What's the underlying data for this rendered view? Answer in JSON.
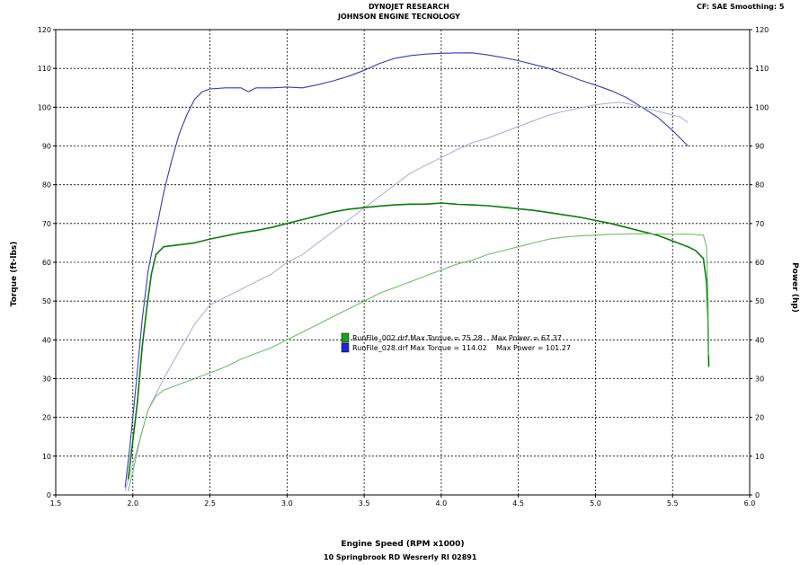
{
  "header": {
    "line1": "DYNOJET RESEARCH",
    "line2": "JOHNSON ENGINE TECNOLOGY",
    "right": "CF: SAE  Smoothing: 5"
  },
  "footer": {
    "address": "10 Springbrook RD Wesrerly RI 02891"
  },
  "chart_data": {
    "type": "line",
    "xlabel": "Engine Speed (RPM x1000)",
    "ylabel_left": "Torque (ft-lbs)",
    "ylabel_right": "Power (hp)",
    "xlim": [
      1.5,
      6.0
    ],
    "ylim": [
      0,
      120
    ],
    "x_ticks": [
      "1.5",
      "2.0",
      "2.5",
      "3.0",
      "3.5",
      "4.0",
      "4.5",
      "5.0",
      "5.5",
      "6.0"
    ],
    "y_ticks": [
      "0",
      "10",
      "20",
      "30",
      "40",
      "50",
      "60",
      "70",
      "80",
      "90",
      "100",
      "110",
      "120"
    ],
    "grid": true,
    "legend": [
      {
        "label": "RunFile_002.drf Max Torque = 75.28    Max Power = 67.37",
        "color": "#1e9e1e"
      },
      {
        "label": "RunFile_028.drf Max Torque = 114.02    Max Power = 101.27",
        "color": "#2222dd"
      }
    ],
    "series": [
      {
        "name": "RunFile_028.drf Torque",
        "color": "#3a3ab8",
        "width": 1.1,
        "points": [
          [
            1.95,
            2
          ],
          [
            1.98,
            12
          ],
          [
            2.02,
            28
          ],
          [
            2.06,
            45
          ],
          [
            2.1,
            58
          ],
          [
            2.15,
            68
          ],
          [
            2.2,
            78
          ],
          [
            2.25,
            86
          ],
          [
            2.3,
            93
          ],
          [
            2.35,
            98
          ],
          [
            2.4,
            102
          ],
          [
            2.45,
            104
          ],
          [
            2.5,
            104.7
          ],
          [
            2.6,
            105
          ],
          [
            2.7,
            105
          ],
          [
            2.75,
            104
          ],
          [
            2.8,
            105
          ],
          [
            2.9,
            105
          ],
          [
            3.0,
            105.2
          ],
          [
            3.1,
            105
          ],
          [
            3.2,
            105.8
          ],
          [
            3.3,
            106.8
          ],
          [
            3.4,
            108
          ],
          [
            3.5,
            109.5
          ],
          [
            3.6,
            111.3
          ],
          [
            3.7,
            112.6
          ],
          [
            3.8,
            113.3
          ],
          [
            3.9,
            113.7
          ],
          [
            4.0,
            113.9
          ],
          [
            4.1,
            114
          ],
          [
            4.2,
            114.02
          ],
          [
            4.3,
            113.5
          ],
          [
            4.4,
            112.8
          ],
          [
            4.5,
            112
          ],
          [
            4.6,
            111
          ],
          [
            4.7,
            110
          ],
          [
            4.8,
            108.5
          ],
          [
            4.9,
            107
          ],
          [
            5.0,
            105.7
          ],
          [
            5.1,
            104.3
          ],
          [
            5.2,
            102.5
          ],
          [
            5.3,
            100
          ],
          [
            5.4,
            97.5
          ],
          [
            5.5,
            94
          ],
          [
            5.55,
            92
          ],
          [
            5.6,
            90
          ]
        ]
      },
      {
        "name": "RunFile_028.drf Power",
        "color": "#a8a8e0",
        "width": 1,
        "points": [
          [
            1.95,
            1
          ],
          [
            2.0,
            8
          ],
          [
            2.05,
            15
          ],
          [
            2.1,
            22
          ],
          [
            2.2,
            30
          ],
          [
            2.3,
            37
          ],
          [
            2.4,
            44
          ],
          [
            2.5,
            49
          ],
          [
            2.6,
            51
          ],
          [
            2.7,
            53
          ],
          [
            2.8,
            55
          ],
          [
            2.9,
            57
          ],
          [
            3.0,
            60
          ],
          [
            3.1,
            62
          ],
          [
            3.2,
            65
          ],
          [
            3.3,
            68
          ],
          [
            3.4,
            71
          ],
          [
            3.5,
            74
          ],
          [
            3.6,
            77
          ],
          [
            3.7,
            80
          ],
          [
            3.8,
            83
          ],
          [
            3.9,
            85
          ],
          [
            4.0,
            87
          ],
          [
            4.1,
            89
          ],
          [
            4.2,
            90.8
          ],
          [
            4.3,
            92
          ],
          [
            4.4,
            93.5
          ],
          [
            4.5,
            95
          ],
          [
            4.6,
            96.5
          ],
          [
            4.7,
            98
          ],
          [
            4.8,
            99
          ],
          [
            4.9,
            99.8
          ],
          [
            5.0,
            100.6
          ],
          [
            5.1,
            101.1
          ],
          [
            5.15,
            101.27
          ],
          [
            5.2,
            101
          ],
          [
            5.3,
            100
          ],
          [
            5.4,
            99
          ],
          [
            5.5,
            98
          ],
          [
            5.55,
            97.5
          ],
          [
            5.6,
            96
          ]
        ]
      },
      {
        "name": "RunFile_002.drf Torque",
        "color": "#0d7a0d",
        "width": 1.6,
        "points": [
          [
            1.97,
            4
          ],
          [
            2.0,
            14
          ],
          [
            2.03,
            24
          ],
          [
            2.06,
            38
          ],
          [
            2.09,
            48
          ],
          [
            2.12,
            57
          ],
          [
            2.15,
            62
          ],
          [
            2.2,
            64
          ],
          [
            2.3,
            64.5
          ],
          [
            2.4,
            65
          ],
          [
            2.5,
            66
          ],
          [
            2.6,
            66.8
          ],
          [
            2.7,
            67.6
          ],
          [
            2.8,
            68.2
          ],
          [
            2.9,
            69
          ],
          [
            3.0,
            70
          ],
          [
            3.1,
            71
          ],
          [
            3.2,
            72
          ],
          [
            3.3,
            73
          ],
          [
            3.4,
            73.7
          ],
          [
            3.5,
            74.1
          ],
          [
            3.6,
            74.5
          ],
          [
            3.7,
            74.8
          ],
          [
            3.8,
            75
          ],
          [
            3.9,
            75
          ],
          [
            4.0,
            75.28
          ],
          [
            4.1,
            75
          ],
          [
            4.2,
            74.8
          ],
          [
            4.3,
            74.6
          ],
          [
            4.4,
            74.2
          ],
          [
            4.5,
            73.8
          ],
          [
            4.6,
            73.4
          ],
          [
            4.7,
            72.8
          ],
          [
            4.8,
            72.2
          ],
          [
            4.9,
            71.6
          ],
          [
            5.0,
            70.8
          ],
          [
            5.1,
            70
          ],
          [
            5.2,
            69
          ],
          [
            5.3,
            68
          ],
          [
            5.4,
            67
          ],
          [
            5.5,
            65.5
          ],
          [
            5.6,
            64
          ],
          [
            5.65,
            63
          ],
          [
            5.7,
            61
          ],
          [
            5.72,
            55
          ],
          [
            5.73,
            45
          ],
          [
            5.735,
            33
          ]
        ]
      },
      {
        "name": "RunFile_002.drf Power",
        "color": "#6abf6a",
        "width": 1.1,
        "points": [
          [
            1.97,
            1
          ],
          [
            2.0,
            6
          ],
          [
            2.05,
            15
          ],
          [
            2.1,
            22
          ],
          [
            2.15,
            25.5
          ],
          [
            2.2,
            27
          ],
          [
            2.3,
            28.5
          ],
          [
            2.4,
            30
          ],
          [
            2.5,
            31.5
          ],
          [
            2.6,
            33
          ],
          [
            2.7,
            35
          ],
          [
            2.8,
            36.5
          ],
          [
            2.9,
            38
          ],
          [
            3.0,
            40
          ],
          [
            3.1,
            42
          ],
          [
            3.2,
            44
          ],
          [
            3.3,
            46
          ],
          [
            3.4,
            48
          ],
          [
            3.5,
            50
          ],
          [
            3.6,
            52
          ],
          [
            3.7,
            53.5
          ],
          [
            3.8,
            55
          ],
          [
            3.9,
            56.5
          ],
          [
            4.0,
            58
          ],
          [
            4.1,
            59.5
          ],
          [
            4.2,
            60.5
          ],
          [
            4.3,
            62
          ],
          [
            4.4,
            63
          ],
          [
            4.5,
            64
          ],
          [
            4.6,
            65
          ],
          [
            4.7,
            66
          ],
          [
            4.8,
            66.5
          ],
          [
            4.9,
            66.8
          ],
          [
            5.0,
            67
          ],
          [
            5.1,
            67.2
          ],
          [
            5.2,
            67.3
          ],
          [
            5.3,
            67.37
          ],
          [
            5.4,
            67.3
          ],
          [
            5.5,
            67.2
          ],
          [
            5.6,
            67.3
          ],
          [
            5.7,
            67
          ],
          [
            5.72,
            64
          ],
          [
            5.73,
            50
          ],
          [
            5.735,
            36
          ]
        ]
      }
    ]
  }
}
